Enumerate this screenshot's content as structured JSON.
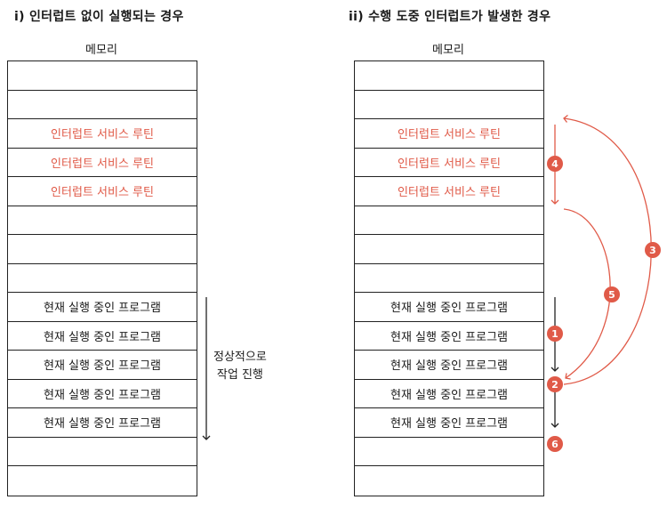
{
  "left": {
    "title": "i) 인터럽트 없이 실행되는 경우",
    "memory_label": "메모리",
    "rows": [
      "",
      "",
      "인터럽트 서비스 루틴",
      "인터럽트 서비스 루틴",
      "인터럽트 서비스 루틴",
      "",
      "",
      "",
      "현재 실행 중인 프로그램",
      "현재 실행 중인 프로그램",
      "현재 실행 중인 프로그램",
      "현재 실행 중인 프로그램",
      "현재 실행 중인 프로그램",
      "",
      ""
    ],
    "note_line1": "정상적으로",
    "note_line2": "작업 진행"
  },
  "right": {
    "title": "ii) 수행 도중 인터럽트가 발생한 경우",
    "memory_label": "메모리",
    "rows": [
      "",
      "",
      "인터럽트 서비스 루틴",
      "인터럽트 서비스 루틴",
      "인터럽트 서비스 루틴",
      "",
      "",
      "",
      "현재 실행 중인 프로그램",
      "현재 실행 중인 프로그램",
      "현재 실행 중인 프로그램",
      "현재 실행 중인 프로그램",
      "현재 실행 중인 프로그램",
      "",
      ""
    ],
    "badges": [
      "1",
      "2",
      "3",
      "4",
      "5",
      "6"
    ]
  },
  "colors": {
    "accent": "#e05a48",
    "line": "#222222"
  }
}
